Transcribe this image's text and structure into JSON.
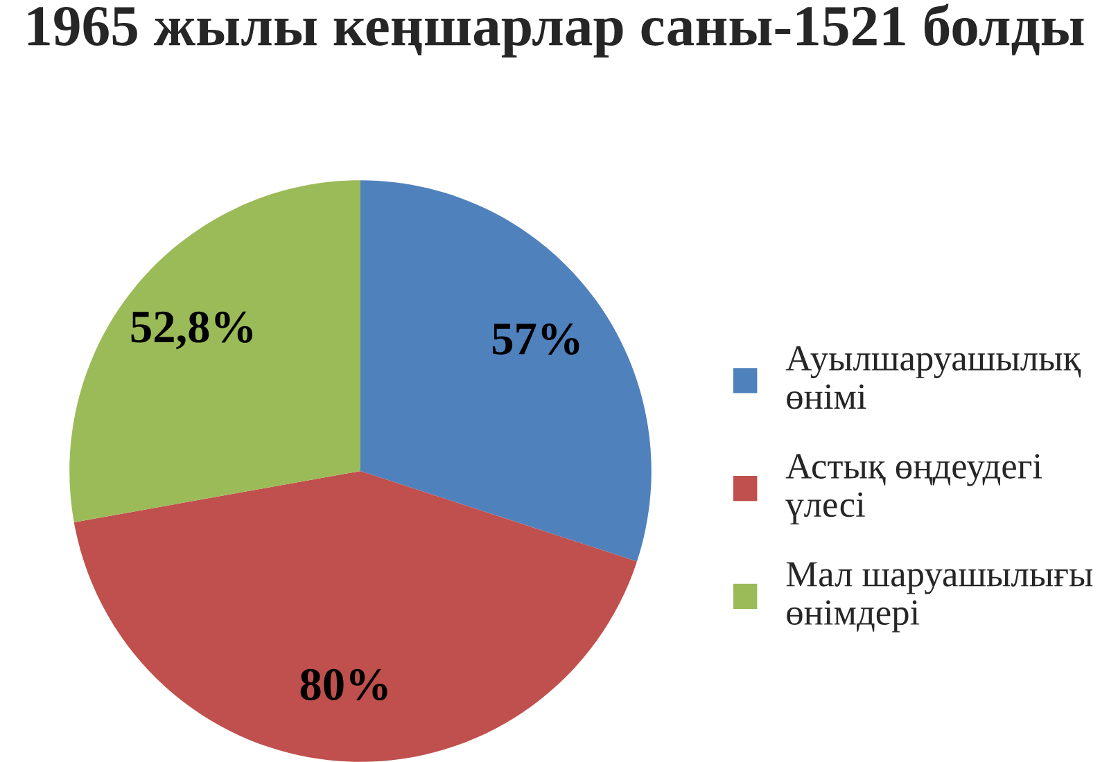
{
  "chart_data": {
    "type": "pie",
    "title": "1965 жылы кеңшарлар саны-1521 болды",
    "categories": [
      "Ауылшаруашылық өнімі",
      "Астық өңдеудегі үлесі",
      "Мал шаруашылығы өнімдері"
    ],
    "values": [
      57,
      80,
      52.8
    ],
    "colors": [
      "#4f81bd",
      "#c0504d",
      "#9bbb59"
    ],
    "value_labels": [
      "57%",
      "80%",
      "52,8%"
    ],
    "legend": "right"
  }
}
